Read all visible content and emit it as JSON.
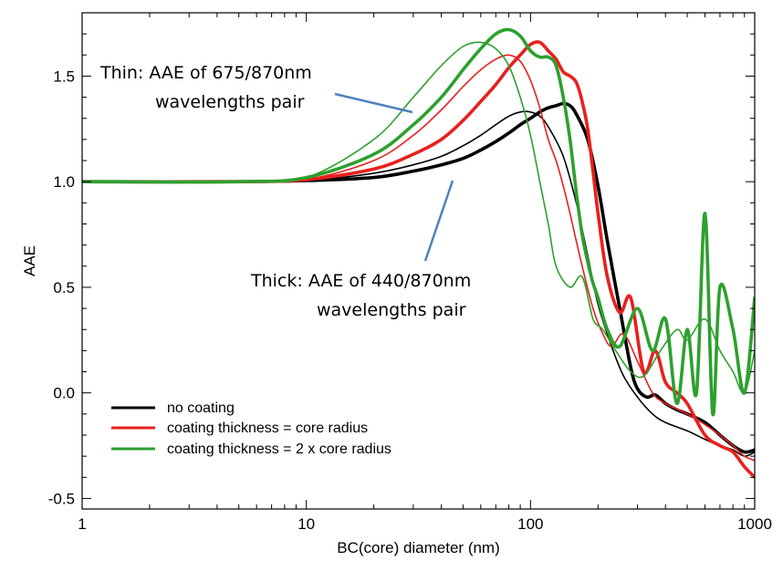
{
  "chart_data": {
    "type": "line",
    "title": "",
    "xlabel": "BC(core) diameter (nm)",
    "ylabel": "AAE",
    "xscale": "log",
    "xlim": [
      1,
      1000
    ],
    "ylim": [
      -0.55,
      1.8
    ],
    "x_ticks": [
      1,
      10,
      100,
      1000
    ],
    "x_tick_labels": [
      "1",
      "10",
      "100",
      "1000"
    ],
    "y_ticks": [
      -0.5,
      0.0,
      0.5,
      1.0,
      1.5
    ],
    "y_tick_labels": [
      "-0.5",
      "0.0",
      "0.5",
      "1.0",
      "1.5"
    ],
    "grid": false,
    "legend": {
      "placement": "bottom-left",
      "entries": [
        {
          "label": "no coating",
          "color": "#000000"
        },
        {
          "label": "coating thickness = core radius",
          "color": "#e8201e"
        },
        {
          "label": "coating thickness = 2 x core radius",
          "color": "#2ea02e"
        }
      ]
    },
    "annotations": [
      {
        "lines": [
          "Thin: AAE of 675/870nm",
          "wavelengths pair"
        ]
      },
      {
        "lines": [
          "Thick: AAE of 440/870nm",
          "wavelengths pair"
        ]
      }
    ],
    "series": [
      {
        "name": "no coating",
        "wavelength_pair": "440/870nm",
        "color": "#000000",
        "width": "thick",
        "x": [
          1,
          5,
          10,
          20,
          30,
          40,
          50,
          60,
          70,
          80,
          90,
          100,
          110,
          120,
          130,
          140,
          150,
          160,
          180,
          200,
          220,
          250,
          280,
          300,
          330,
          360,
          400,
          450,
          500,
          600,
          700,
          800,
          900,
          1000
        ],
        "y": [
          1.0,
          1.0,
          1.005,
          1.02,
          1.05,
          1.08,
          1.11,
          1.15,
          1.19,
          1.23,
          1.27,
          1.3,
          1.33,
          1.35,
          1.36,
          1.37,
          1.36,
          1.32,
          1.2,
          0.98,
          0.72,
          0.4,
          0.12,
          0.02,
          -0.02,
          -0.01,
          -0.05,
          -0.08,
          -0.1,
          -0.14,
          -0.2,
          -0.25,
          -0.28,
          -0.27
        ]
      },
      {
        "name": "no coating",
        "wavelength_pair": "675/870nm",
        "color": "#000000",
        "width": "thin",
        "x": [
          1,
          5,
          10,
          20,
          30,
          40,
          50,
          60,
          70,
          80,
          90,
          100,
          110,
          120,
          140,
          160,
          180,
          200,
          230,
          260,
          300,
          350,
          400,
          500,
          600,
          700,
          800,
          900,
          1000
        ],
        "y": [
          1.0,
          1.0,
          1.005,
          1.04,
          1.08,
          1.12,
          1.17,
          1.22,
          1.27,
          1.31,
          1.33,
          1.33,
          1.31,
          1.26,
          1.12,
          0.9,
          0.65,
          0.42,
          0.22,
          0.08,
          -0.02,
          -0.1,
          -0.14,
          -0.18,
          -0.22,
          -0.25,
          -0.27,
          -0.3,
          -0.28
        ]
      },
      {
        "name": "coating thickness = core radius",
        "wavelength_pair": "440/870nm",
        "color": "#e8201e",
        "width": "thick",
        "x": [
          1,
          5,
          10,
          20,
          30,
          40,
          50,
          60,
          70,
          80,
          90,
          100,
          110,
          120,
          130,
          140,
          150,
          160,
          170,
          180,
          190,
          200,
          220,
          250,
          280,
          320,
          360,
          400,
          450,
          500,
          600,
          700,
          800,
          900,
          1000
        ],
        "y": [
          1.0,
          1.0,
          1.01,
          1.06,
          1.13,
          1.2,
          1.29,
          1.38,
          1.46,
          1.54,
          1.6,
          1.65,
          1.66,
          1.62,
          1.58,
          1.52,
          1.5,
          1.47,
          1.38,
          1.25,
          1.05,
          0.85,
          0.55,
          0.38,
          0.45,
          0.1,
          0.2,
          0.05,
          0.0,
          -0.05,
          -0.2,
          -0.25,
          -0.28,
          -0.35,
          -0.4
        ]
      },
      {
        "name": "coating thickness = core radius",
        "wavelength_pair": "675/870nm",
        "color": "#e8201e",
        "width": "thin",
        "x": [
          1,
          5,
          10,
          20,
          30,
          40,
          50,
          60,
          70,
          80,
          90,
          100,
          110,
          120,
          130,
          140,
          150,
          170,
          190,
          210,
          230,
          260,
          300,
          350,
          400,
          500,
          600,
          700,
          800,
          900,
          1000
        ],
        "y": [
          1.0,
          1.0,
          1.01,
          1.1,
          1.22,
          1.34,
          1.45,
          1.53,
          1.58,
          1.6,
          1.57,
          1.48,
          1.35,
          1.2,
          1.1,
          0.98,
          0.85,
          0.6,
          0.4,
          0.28,
          0.22,
          0.28,
          0.15,
          0.0,
          -0.05,
          -0.1,
          -0.15,
          -0.2,
          -0.25,
          -0.3,
          -0.32
        ]
      },
      {
        "name": "coating thickness = 2 x core radius",
        "wavelength_pair": "440/870nm",
        "color": "#2ea02e",
        "width": "thick",
        "x": [
          1,
          5,
          10,
          20,
          30,
          40,
          50,
          60,
          70,
          80,
          90,
          100,
          110,
          120,
          130,
          140,
          150,
          160,
          170,
          180,
          190,
          200,
          220,
          250,
          300,
          350,
          400,
          450,
          500,
          550,
          600,
          650,
          700,
          800,
          900,
          1000
        ],
        "y": [
          1.0,
          1.0,
          1.02,
          1.13,
          1.27,
          1.4,
          1.53,
          1.63,
          1.7,
          1.72,
          1.69,
          1.62,
          1.59,
          1.59,
          1.55,
          1.4,
          1.2,
          0.95,
          0.75,
          0.62,
          0.52,
          0.45,
          0.3,
          0.22,
          0.4,
          0.2,
          0.35,
          -0.05,
          0.3,
          0.0,
          0.85,
          -0.1,
          0.5,
          0.3,
          0.0,
          0.45
        ]
      },
      {
        "name": "coating thickness = 2 x core radius",
        "wavelength_pair": "675/870nm",
        "color": "#2ea02e",
        "width": "thin",
        "x": [
          1,
          5,
          10,
          20,
          30,
          40,
          50,
          60,
          70,
          80,
          90,
          100,
          110,
          120,
          130,
          150,
          170,
          190,
          210,
          240,
          280,
          320,
          380,
          450,
          500,
          600,
          700,
          800,
          900,
          1000
        ],
        "y": [
          1.0,
          1.0,
          1.02,
          1.2,
          1.4,
          1.55,
          1.64,
          1.66,
          1.63,
          1.55,
          1.4,
          1.22,
          1.0,
          0.8,
          0.6,
          0.5,
          0.55,
          0.35,
          0.3,
          0.2,
          0.1,
          0.08,
          0.2,
          0.3,
          0.25,
          0.35,
          0.2,
          0.1,
          0.0,
          0.2
        ]
      }
    ]
  }
}
